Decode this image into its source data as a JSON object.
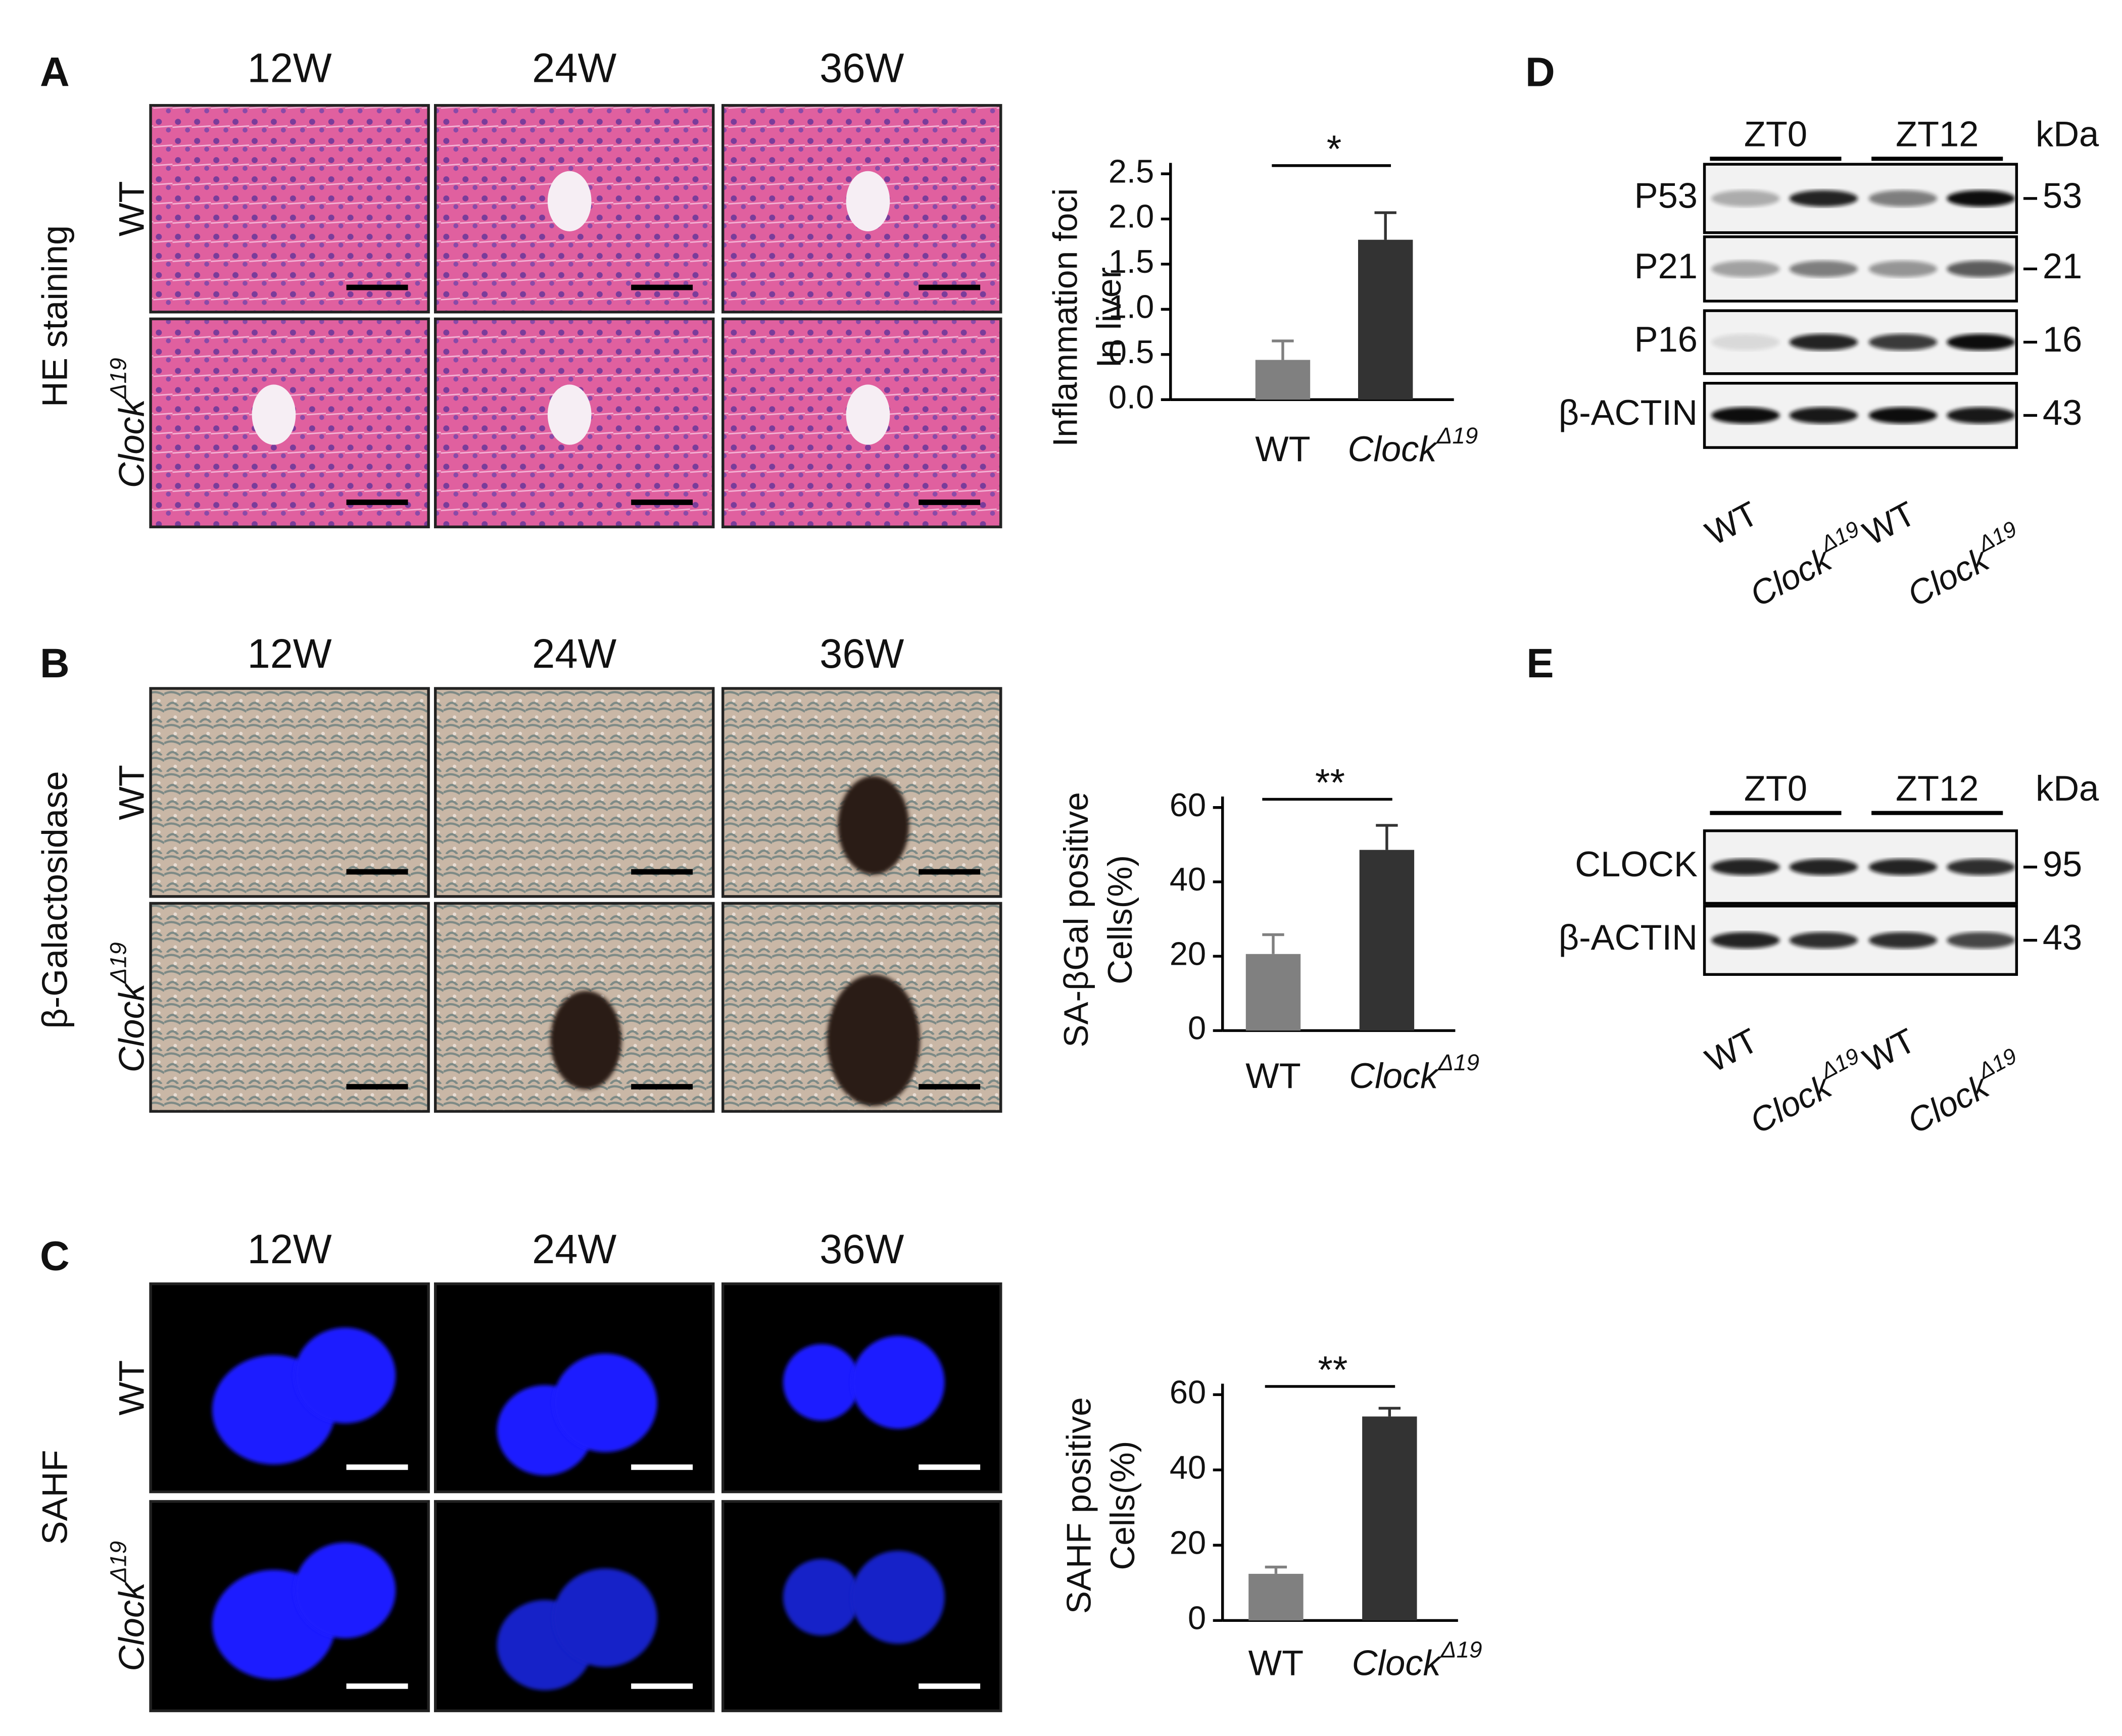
{
  "panels": [
    {
      "label": "A",
      "stain": "HE staining",
      "columns": [
        "12W",
        "24W",
        "36W"
      ],
      "rows": [
        {
          "name": "WT"
        },
        {
          "name": "Clock",
          "superscript": "Δ19"
        }
      ]
    },
    {
      "label": "B",
      "stain": "β-Galactosidase",
      "columns": [
        "12W",
        "24W",
        "36W"
      ],
      "rows": [
        {
          "name": "WT"
        },
        {
          "name": "Clock",
          "superscript": "Δ19"
        }
      ]
    },
    {
      "label": "C",
      "stain": "SAHF",
      "columns": [
        "12W",
        "24W",
        "36W"
      ],
      "rows": [
        {
          "name": "WT"
        },
        {
          "name": "Clock",
          "superscript": "Δ19"
        }
      ]
    }
  ],
  "chart_data": [
    {
      "type": "bar",
      "y_label": [
        "Inflammation foci",
        "In liver"
      ],
      "categories": [
        "WT",
        "Clock"
      ],
      "category_superscripts": [
        null,
        "Δ19"
      ],
      "values": [
        0.44,
        1.77
      ],
      "errors": [
        0.21,
        0.3
      ],
      "colors": [
        "#808080",
        "#333333"
      ],
      "significance": "*",
      "ylim": [
        0,
        2.5
      ],
      "yticks": [
        {
          "value": 0,
          "label": "0.0"
        },
        {
          "value": 0.5,
          "label": "0.5"
        },
        {
          "value": 1,
          "label": "1.0"
        },
        {
          "value": 1.5,
          "label": "1.5"
        },
        {
          "value": 2,
          "label": "2.0"
        },
        {
          "value": 2.5,
          "label": "2.5"
        }
      ]
    },
    {
      "type": "bar",
      "y_label": [
        "SA-βGal positive",
        "Cells(%)"
      ],
      "categories": [
        "WT",
        "Clock"
      ],
      "category_superscripts": [
        null,
        "Δ19"
      ],
      "values": [
        20.6,
        48.6
      ],
      "errors": [
        5.2,
        6.6
      ],
      "colors": [
        "#808080",
        "#333333"
      ],
      "significance": "**",
      "ylim": [
        0,
        60
      ],
      "yticks": [
        0,
        20,
        40,
        60
      ]
    },
    {
      "type": "bar",
      "y_label": [
        "SAHF positive",
        "Cells(%)"
      ],
      "categories": [
        "WT",
        "Clock"
      ],
      "category_superscripts": [
        null,
        "Δ19"
      ],
      "values": [
        12.4,
        54.2
      ],
      "errors": [
        1.8,
        2.2
      ],
      "colors": [
        "#808080",
        "#333333"
      ],
      "significance": "**",
      "ylim": [
        0,
        60
      ],
      "yticks": [
        0,
        20,
        40,
        60
      ]
    }
  ],
  "blots": [
    {
      "label": "D",
      "groups": [
        "ZT0",
        "ZT12"
      ],
      "unit": "kDa",
      "proteins": [
        {
          "name": "P53",
          "kda": 53
        },
        {
          "name": "P21",
          "kda": 21
        },
        {
          "name": "P16",
          "kda": 16
        },
        {
          "name": "β-ACTIN",
          "kda": 43
        }
      ],
      "lanes": [
        {
          "name": "WT"
        },
        {
          "name": "Clock",
          "superscript": "Δ19"
        },
        {
          "name": "WT"
        },
        {
          "name": "Clock",
          "superscript": "Δ19"
        }
      ]
    },
    {
      "label": "E",
      "groups": [
        "ZT0",
        "ZT12"
      ],
      "unit": "kDa",
      "proteins": [
        {
          "name": "CLOCK",
          "kda": 95
        },
        {
          "name": "β-ACTIN",
          "kda": 43
        }
      ],
      "lanes": [
        {
          "name": "WT"
        },
        {
          "name": "Clock",
          "superscript": "Δ19"
        },
        {
          "name": "WT"
        },
        {
          "name": "Clock",
          "superscript": "Δ19"
        }
      ]
    }
  ]
}
